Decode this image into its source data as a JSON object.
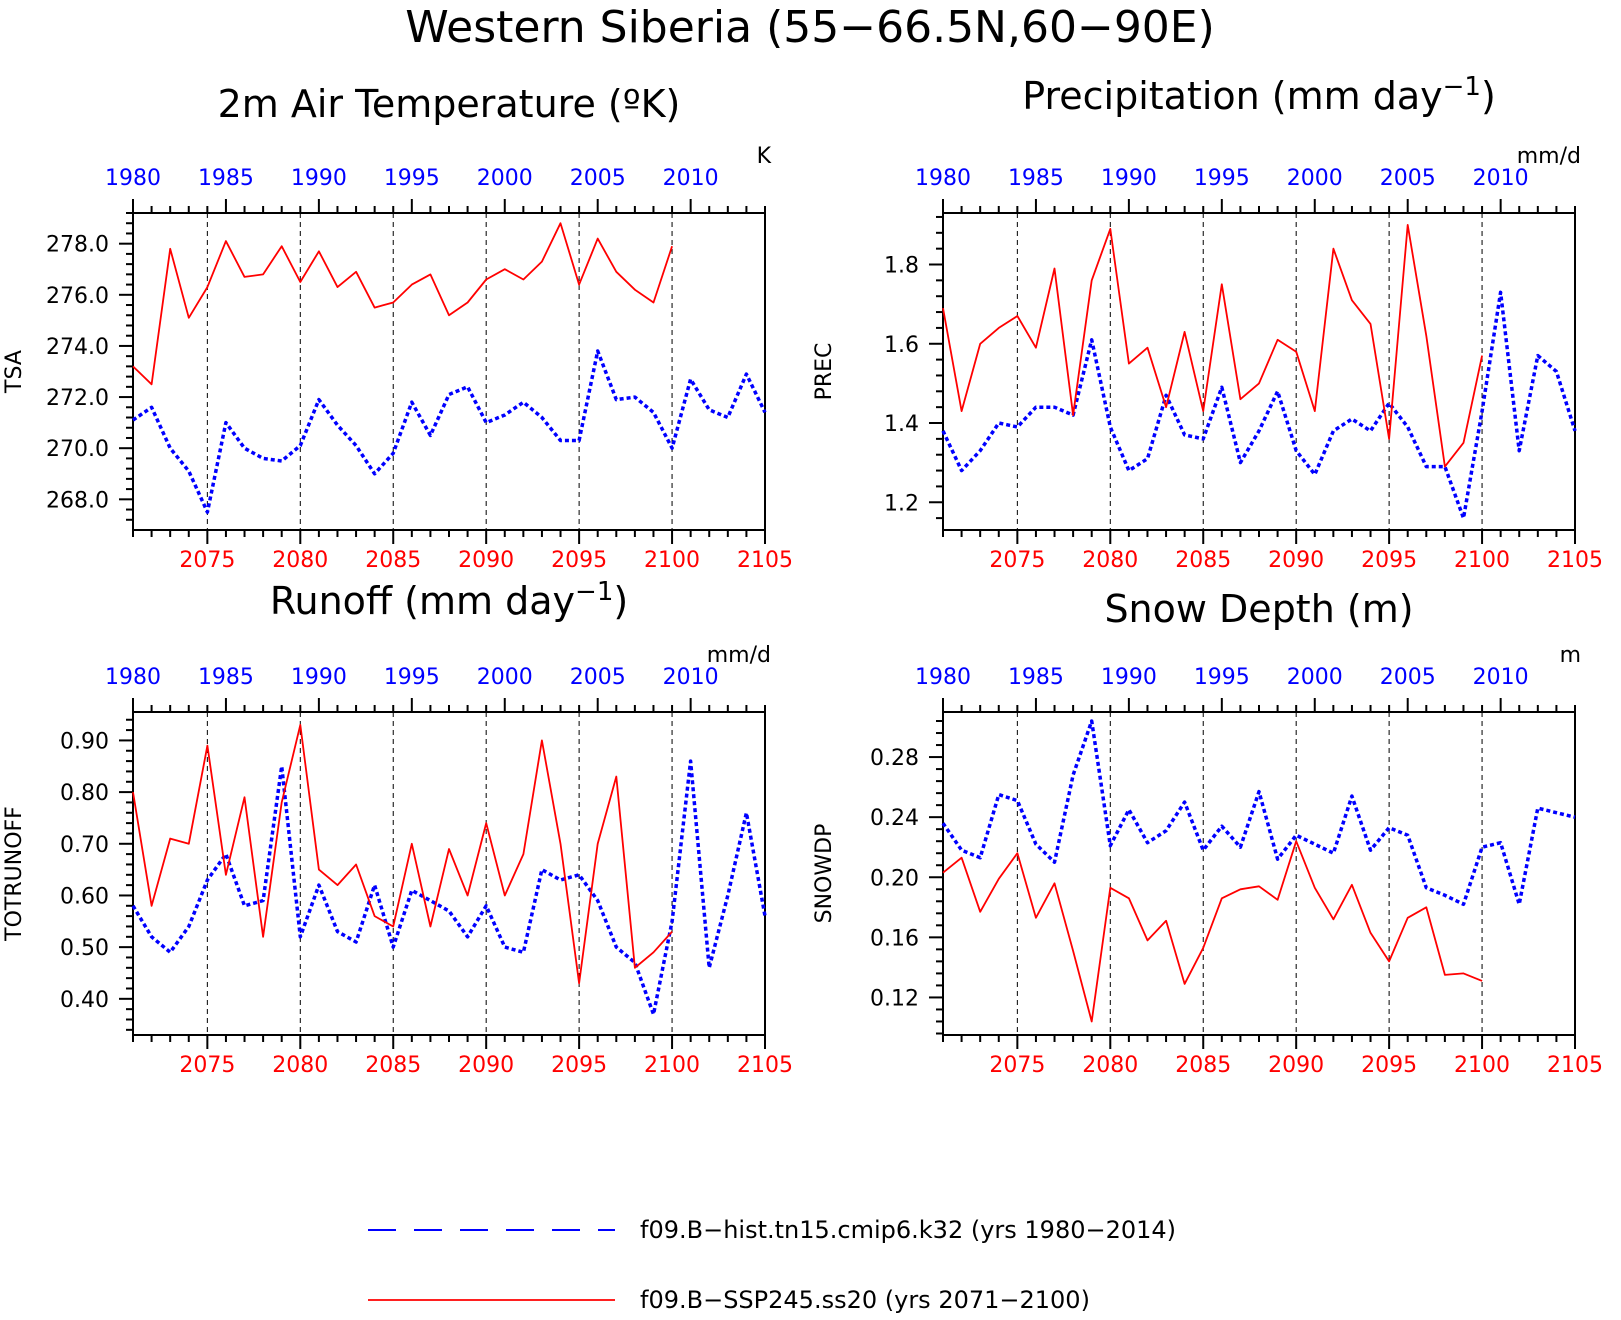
{
  "title": "Western Siberia (55−66.5N,60−90E)",
  "colors": {
    "hist": "#0000ff",
    "ssp": "#ff0000",
    "axis": "#000000"
  },
  "legend": [
    {
      "label": "f09.B−hist.tn15.cmip6.k32 (yrs 1980−2014)",
      "series": "hist",
      "style": "dashed"
    },
    {
      "label": "f09.B−SSP245.ss20 (yrs 2071−2100)",
      "series": "ssp",
      "style": "solid"
    }
  ],
  "chart_data": [
    {
      "type": "line",
      "title": "2m Air Temperature (ºK)",
      "ylabel": "TSA",
      "unit": "K",
      "ylim": [
        266.8,
        279.2
      ],
      "yticks": [
        268.0,
        270.0,
        272.0,
        274.0,
        276.0,
        278.0
      ],
      "ytick_labels": [
        "268.0",
        "270.0",
        "272.0",
        "274.0",
        "276.0",
        "278.0"
      ],
      "top_axis": {
        "xlim": [
          1980,
          2014
        ],
        "ticks": [
          1980,
          1985,
          1990,
          1995,
          2000,
          2005,
          2010
        ]
      },
      "bottom_axis": {
        "xlim": [
          2071,
          2105
        ],
        "ticks": [
          2075,
          2080,
          2085,
          2090,
          2095,
          2100,
          2105
        ]
      },
      "series": [
        {
          "name": "hist",
          "x_start": 1980,
          "values": [
            271.1,
            271.6,
            270.0,
            269.1,
            267.5,
            271.0,
            270.0,
            269.6,
            269.5,
            270.1,
            271.9,
            270.9,
            270.1,
            269.0,
            269.8,
            271.8,
            270.5,
            272.1,
            272.4,
            271.0,
            271.3,
            271.8,
            271.2,
            270.3,
            270.3,
            273.8,
            271.9,
            272.0,
            271.4,
            270.0,
            272.7,
            271.5,
            271.2,
            272.9,
            271.4
          ]
        },
        {
          "name": "ssp",
          "x_start": 2071,
          "values": [
            273.2,
            272.5,
            277.8,
            275.1,
            276.3,
            278.1,
            276.7,
            276.8,
            277.9,
            276.5,
            277.7,
            276.3,
            276.9,
            275.5,
            275.7,
            276.4,
            276.8,
            275.2,
            275.7,
            276.6,
            277.0,
            276.6,
            277.3,
            278.8,
            276.4,
            278.2,
            276.9,
            276.2,
            275.7,
            277.9
          ]
        }
      ]
    },
    {
      "type": "line",
      "title": "Precipitation (mm day",
      "title_sup": "−1",
      "title_end": ")",
      "ylabel": "PREC",
      "unit": "mm/d",
      "ylim": [
        1.13,
        1.93
      ],
      "yticks": [
        1.2,
        1.4,
        1.6,
        1.8
      ],
      "ytick_labels": [
        "1.2",
        "1.4",
        "1.6",
        "1.8"
      ],
      "top_axis": {
        "xlim": [
          1980,
          2014
        ],
        "ticks": [
          1980,
          1985,
          1990,
          1995,
          2000,
          2005,
          2010
        ]
      },
      "bottom_axis": {
        "xlim": [
          2071,
          2105
        ],
        "ticks": [
          2075,
          2080,
          2085,
          2090,
          2095,
          2100,
          2105
        ]
      },
      "series": [
        {
          "name": "hist",
          "x_start": 1980,
          "values": [
            1.38,
            1.28,
            1.33,
            1.4,
            1.39,
            1.44,
            1.44,
            1.42,
            1.61,
            1.39,
            1.28,
            1.31,
            1.47,
            1.37,
            1.36,
            1.49,
            1.3,
            1.38,
            1.48,
            1.33,
            1.27,
            1.38,
            1.41,
            1.38,
            1.45,
            1.39,
            1.29,
            1.29,
            1.16,
            1.43,
            1.73,
            1.33,
            1.57,
            1.53,
            1.38
          ]
        },
        {
          "name": "ssp",
          "x_start": 2071,
          "values": [
            1.69,
            1.43,
            1.6,
            1.64,
            1.67,
            1.59,
            1.79,
            1.42,
            1.76,
            1.89,
            1.55,
            1.59,
            1.44,
            1.63,
            1.43,
            1.75,
            1.46,
            1.5,
            1.61,
            1.58,
            1.43,
            1.84,
            1.71,
            1.65,
            1.36,
            1.9,
            1.62,
            1.29,
            1.35,
            1.57
          ]
        }
      ]
    },
    {
      "type": "line",
      "title": "Runoff (mm day",
      "title_sup": "−1",
      "title_end": ")",
      "ylabel": "TOTRUNOFF",
      "unit": "mm/d",
      "ylim": [
        0.33,
        0.955
      ],
      "yticks": [
        0.4,
        0.5,
        0.6,
        0.7,
        0.8,
        0.9
      ],
      "ytick_labels": [
        "0.40",
        "0.50",
        "0.60",
        "0.70",
        "0.80",
        "0.90"
      ],
      "top_axis": {
        "xlim": [
          1980,
          2014
        ],
        "ticks": [
          1980,
          1985,
          1990,
          1995,
          2000,
          2005,
          2010
        ]
      },
      "bottom_axis": {
        "xlim": [
          2071,
          2105
        ],
        "ticks": [
          2075,
          2080,
          2085,
          2090,
          2095,
          2100,
          2105
        ]
      },
      "series": [
        {
          "name": "hist",
          "x_start": 1980,
          "values": [
            0.58,
            0.52,
            0.49,
            0.54,
            0.63,
            0.68,
            0.58,
            0.59,
            0.85,
            0.52,
            0.62,
            0.53,
            0.51,
            0.62,
            0.5,
            0.61,
            0.59,
            0.57,
            0.52,
            0.58,
            0.5,
            0.49,
            0.65,
            0.63,
            0.64,
            0.59,
            0.5,
            0.47,
            0.37,
            0.55,
            0.86,
            0.46,
            0.6,
            0.76,
            0.56
          ]
        },
        {
          "name": "ssp",
          "x_start": 2071,
          "values": [
            0.8,
            0.58,
            0.71,
            0.7,
            0.89,
            0.64,
            0.79,
            0.52,
            0.78,
            0.93,
            0.65,
            0.62,
            0.66,
            0.56,
            0.54,
            0.7,
            0.54,
            0.69,
            0.6,
            0.74,
            0.6,
            0.68,
            0.9,
            0.7,
            0.43,
            0.7,
            0.83,
            0.46,
            0.49,
            0.53
          ]
        }
      ]
    },
    {
      "type": "line",
      "title": "Snow Depth (m)",
      "ylabel": "SNOWDP",
      "unit": "m",
      "ylim": [
        0.095,
        0.31
      ],
      "yticks": [
        0.12,
        0.16,
        0.2,
        0.24,
        0.28
      ],
      "ytick_labels": [
        "0.12",
        "0.16",
        "0.20",
        "0.24",
        "0.28"
      ],
      "top_axis": {
        "xlim": [
          1980,
          2014
        ],
        "ticks": [
          1980,
          1985,
          1990,
          1995,
          2000,
          2005,
          2010
        ]
      },
      "bottom_axis": {
        "xlim": [
          2071,
          2105
        ],
        "ticks": [
          2075,
          2080,
          2085,
          2090,
          2095,
          2100,
          2105
        ]
      },
      "series": [
        {
          "name": "hist",
          "x_start": 1980,
          "values": [
            0.236,
            0.218,
            0.213,
            0.255,
            0.251,
            0.222,
            0.21,
            0.268,
            0.304,
            0.221,
            0.245,
            0.223,
            0.231,
            0.25,
            0.218,
            0.234,
            0.22,
            0.257,
            0.212,
            0.228,
            0.222,
            0.216,
            0.254,
            0.218,
            0.233,
            0.228,
            0.193,
            0.188,
            0.182,
            0.22,
            0.223,
            0.182,
            0.246,
            0.243,
            0.24
          ]
        },
        {
          "name": "ssp",
          "x_start": 2071,
          "values": [
            0.203,
            0.213,
            0.177,
            0.199,
            0.216,
            0.173,
            0.196,
            0.151,
            0.104,
            0.193,
            0.186,
            0.158,
            0.171,
            0.129,
            0.153,
            0.186,
            0.192,
            0.194,
            0.185,
            0.224,
            0.193,
            0.172,
            0.195,
            0.163,
            0.144,
            0.173,
            0.18,
            0.135,
            0.136,
            0.131
          ]
        }
      ]
    }
  ]
}
